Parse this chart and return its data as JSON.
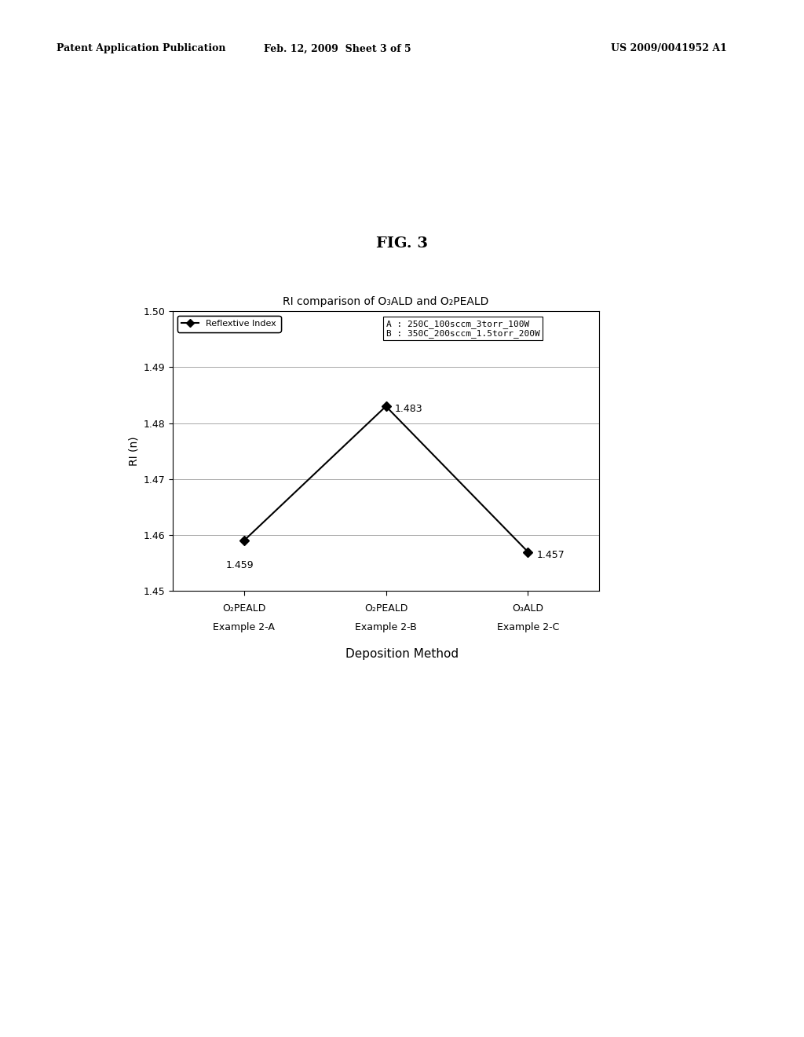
{
  "title": "RI comparison of O₃ALD and O₂PEALD",
  "xlabel": "Deposition Method",
  "ylabel": "RI (n)",
  "fig_label": "FIG. 3",
  "header_left": "Patent Application Publication",
  "header_mid": "Feb. 12, 2009  Sheet 3 of 5",
  "header_right": "US 2009/0041952 A1",
  "x_label_top": [
    "O₂PEALD",
    "O₂PEALD",
    "O₃ALD"
  ],
  "x_label_bot": [
    "Example 2-A",
    "Example 2-B",
    "Example 2-C"
  ],
  "y_values": [
    1.459,
    1.483,
    1.457
  ],
  "ylim": [
    1.45,
    1.5
  ],
  "yticks": [
    1.45,
    1.46,
    1.47,
    1.48,
    1.49,
    1.5
  ],
  "legend_line": "Reflextive Index",
  "note_line1": "A : 250C_100sccm_3torr_100W",
  "note_line2": "B : 350C_200sccm_1.5torr_200W",
  "line_color": "#000000",
  "marker": "D",
  "marker_color": "#000000",
  "bg_color": "#ffffff",
  "data_label_values": [
    "1.459",
    "1.483",
    "1.457"
  ],
  "chart_title_fontsize": 10,
  "axis_label_fontsize": 10,
  "tick_fontsize": 9,
  "xlabel_fontsize": 11,
  "header_fontsize": 9,
  "fig_label_fontsize": 14,
  "xcat_fontsize": 9,
  "note_fontsize": 8
}
